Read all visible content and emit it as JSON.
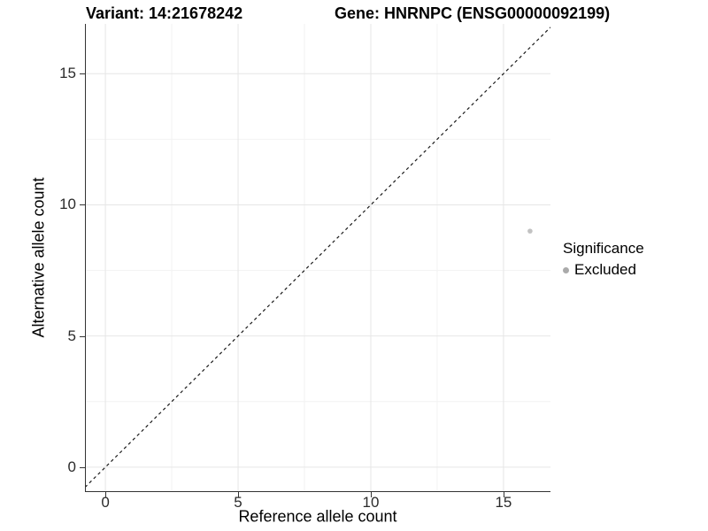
{
  "title": {
    "variant": "Variant: 14:21678242",
    "gene": "Gene: HNRNPC (ENSG00000092199)"
  },
  "x_axis": {
    "label": "Reference allele count",
    "major_ticks": [
      0,
      5,
      10,
      15
    ],
    "minor_ticks": [
      2.5,
      7.5,
      12.5
    ]
  },
  "y_axis": {
    "label": "Alternative allele count",
    "major_ticks": [
      0,
      5,
      10,
      15
    ],
    "minor_ticks": [
      2.5,
      7.5,
      12.5
    ]
  },
  "legend": {
    "title": "Significance",
    "items": [
      {
        "label": "Excluded",
        "color": "#aaaaaa"
      }
    ]
  },
  "colors": {
    "grid_major": "#e6e6e6",
    "grid_minor": "#f2f2f2",
    "axis_line": "#333333",
    "identity_line": "#1a1a1a",
    "point": "#c2c2c2"
  },
  "chart_data": {
    "type": "scatter",
    "title": "Variant: 14:21678242 | Gene: HNRNPC (ENSG00000092199)",
    "xlabel": "Reference allele count",
    "ylabel": "Alternative allele count",
    "xlim": [
      -0.77,
      16.77
    ],
    "ylim": [
      -0.95,
      16.9
    ],
    "grid": true,
    "legend_position": "right",
    "series": [
      {
        "name": "Excluded",
        "points": [
          {
            "x": 16,
            "y": 9
          }
        ]
      }
    ],
    "reference_line": "identity y = x, dashed"
  }
}
